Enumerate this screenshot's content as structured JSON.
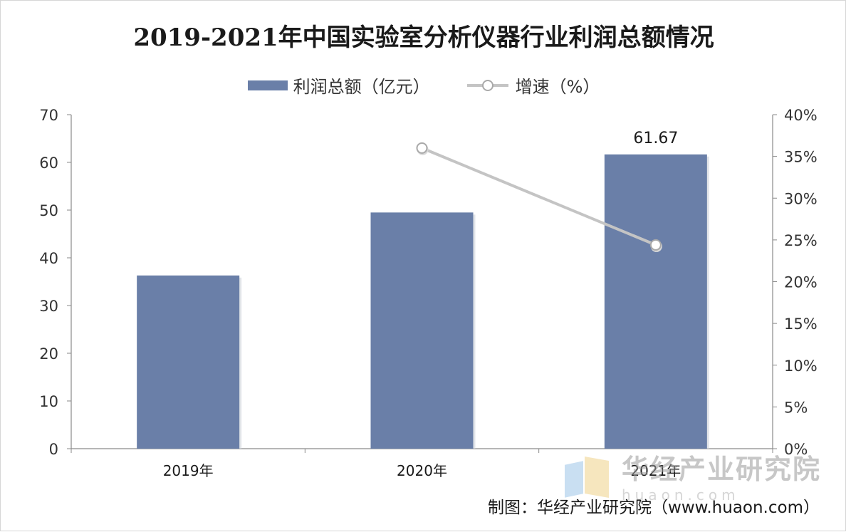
{
  "chart_data": {
    "type": "bar",
    "title": "2019-2021年中国实验室分析仪器行业利润总额情况",
    "categories": [
      "2019年",
      "2020年",
      "2021年"
    ],
    "series": [
      {
        "name": "利润总额（亿元）",
        "kind": "bar",
        "axis": "left",
        "values": [
          36.3,
          49.5,
          61.67
        ],
        "data_labels": [
          null,
          null,
          "61.67"
        ]
      },
      {
        "name": "增速（%）",
        "kind": "line",
        "axis": "right",
        "values": [
          null,
          36.0,
          24.4
        ]
      }
    ],
    "y_left": {
      "range": [
        0,
        70
      ],
      "ticks": [
        "0",
        "10",
        "20",
        "30",
        "40",
        "50",
        "60",
        "70"
      ]
    },
    "y_right": {
      "range": [
        0,
        40
      ],
      "ticks": [
        "0%",
        "5%",
        "10%",
        "15%",
        "20%",
        "25%",
        "30%",
        "35%",
        "40%"
      ]
    },
    "legend": {
      "position": "top",
      "items": [
        {
          "label": "利润总额（亿元）",
          "kind": "bar"
        },
        {
          "label": "增速（%）",
          "kind": "line"
        }
      ]
    },
    "grid": false
  },
  "colors": {
    "bar": "#6a7fa8",
    "line": "#c4c4c4",
    "marker_stroke": "#a9a9a9",
    "axis": "#8a8a8a",
    "text": "#333333"
  },
  "watermark": {
    "name": "华经产业研究院",
    "url": "huaon.com"
  },
  "source": "制图：华经产业研究院（www.huaon.com）"
}
